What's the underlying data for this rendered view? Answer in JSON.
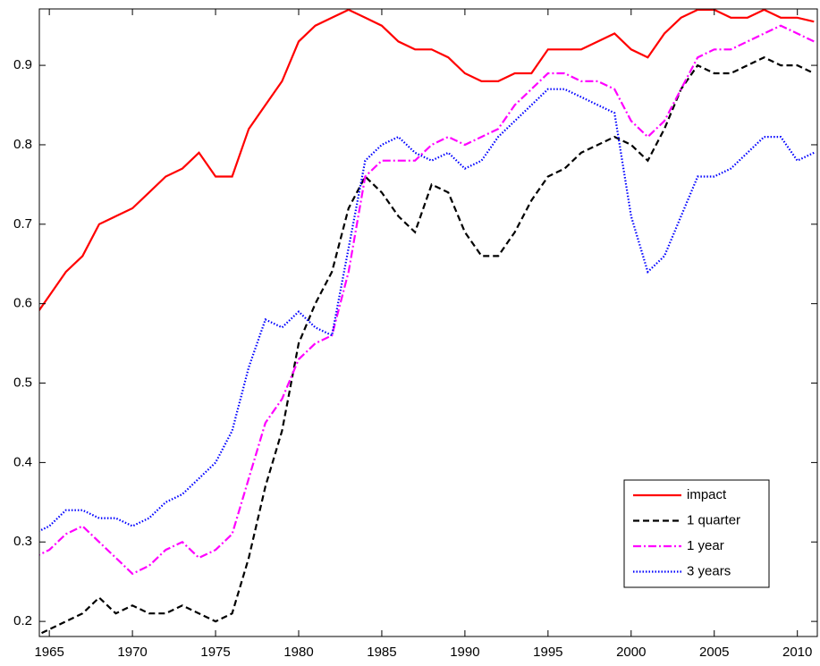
{
  "chart_data": {
    "type": "line",
    "x": [
      1964,
      1965,
      1966,
      1967,
      1968,
      1969,
      1970,
      1971,
      1972,
      1973,
      1974,
      1975,
      1976,
      1977,
      1978,
      1979,
      1980,
      1981,
      1982,
      1983,
      1984,
      1985,
      1986,
      1987,
      1988,
      1989,
      1990,
      1991,
      1992,
      1993,
      1994,
      1995,
      1996,
      1997,
      1998,
      1999,
      2000,
      2001,
      2002,
      2003,
      2004,
      2005,
      2006,
      2007,
      2008,
      2009,
      2010,
      2011
    ],
    "series": [
      {
        "name": "impact",
        "color": "#ff0000",
        "linestyle": "solid",
        "values": [
          0.58,
          0.61,
          0.64,
          0.66,
          0.7,
          0.71,
          0.72,
          0.74,
          0.76,
          0.77,
          0.79,
          0.76,
          0.76,
          0.82,
          0.85,
          0.88,
          0.93,
          0.95,
          0.96,
          0.97,
          0.96,
          0.95,
          0.93,
          0.92,
          0.92,
          0.91,
          0.89,
          0.88,
          0.88,
          0.89,
          0.89,
          0.92,
          0.92,
          0.92,
          0.93,
          0.94,
          0.92,
          0.91,
          0.94,
          0.96,
          0.97,
          0.97,
          0.96,
          0.96,
          0.97,
          0.96,
          0.96,
          0.955
        ]
      },
      {
        "name": "1 quarter",
        "color": "#000000",
        "linestyle": "dashed",
        "values": [
          0.18,
          0.19,
          0.2,
          0.21,
          0.23,
          0.21,
          0.22,
          0.21,
          0.21,
          0.22,
          0.21,
          0.2,
          0.21,
          0.28,
          0.37,
          0.44,
          0.55,
          0.6,
          0.64,
          0.72,
          0.76,
          0.74,
          0.71,
          0.69,
          0.75,
          0.74,
          0.69,
          0.66,
          0.66,
          0.69,
          0.73,
          0.76,
          0.77,
          0.79,
          0.8,
          0.81,
          0.8,
          0.78,
          0.82,
          0.87,
          0.9,
          0.89,
          0.89,
          0.9,
          0.91,
          0.9,
          0.9,
          0.89
        ]
      },
      {
        "name": "1 year",
        "color": "#ff00ff",
        "linestyle": "dashdot",
        "values": [
          0.28,
          0.29,
          0.31,
          0.32,
          0.3,
          0.28,
          0.26,
          0.27,
          0.29,
          0.3,
          0.28,
          0.29,
          0.31,
          0.38,
          0.45,
          0.48,
          0.53,
          0.55,
          0.56,
          0.64,
          0.76,
          0.78,
          0.78,
          0.78,
          0.8,
          0.81,
          0.8,
          0.81,
          0.82,
          0.85,
          0.87,
          0.89,
          0.89,
          0.88,
          0.88,
          0.87,
          0.83,
          0.81,
          0.83,
          0.87,
          0.91,
          0.92,
          0.92,
          0.93,
          0.94,
          0.95,
          0.94,
          0.93
        ]
      },
      {
        "name": "3 years",
        "color": "#0000ff",
        "linestyle": "dotted",
        "values": [
          0.31,
          0.32,
          0.34,
          0.34,
          0.33,
          0.33,
          0.32,
          0.33,
          0.35,
          0.36,
          0.38,
          0.4,
          0.44,
          0.52,
          0.58,
          0.57,
          0.59,
          0.57,
          0.56,
          0.67,
          0.78,
          0.8,
          0.81,
          0.79,
          0.78,
          0.79,
          0.77,
          0.78,
          0.81,
          0.83,
          0.85,
          0.87,
          0.87,
          0.86,
          0.85,
          0.84,
          0.71,
          0.64,
          0.66,
          0.71,
          0.76,
          0.76,
          0.77,
          0.79,
          0.81,
          0.81,
          0.78,
          0.79
        ]
      }
    ],
    "xlim": [
      1964.4,
      2011.2
    ],
    "xticks": [
      1965,
      1970,
      1975,
      1980,
      1985,
      1990,
      1995,
      2000,
      2005,
      2010
    ],
    "ylim": [
      0.181,
      0.971
    ],
    "yticks": [
      0.2,
      0.3,
      0.4,
      0.5,
      0.6,
      0.7,
      0.8,
      0.9
    ],
    "legend": "lower right",
    "grid": false
  }
}
